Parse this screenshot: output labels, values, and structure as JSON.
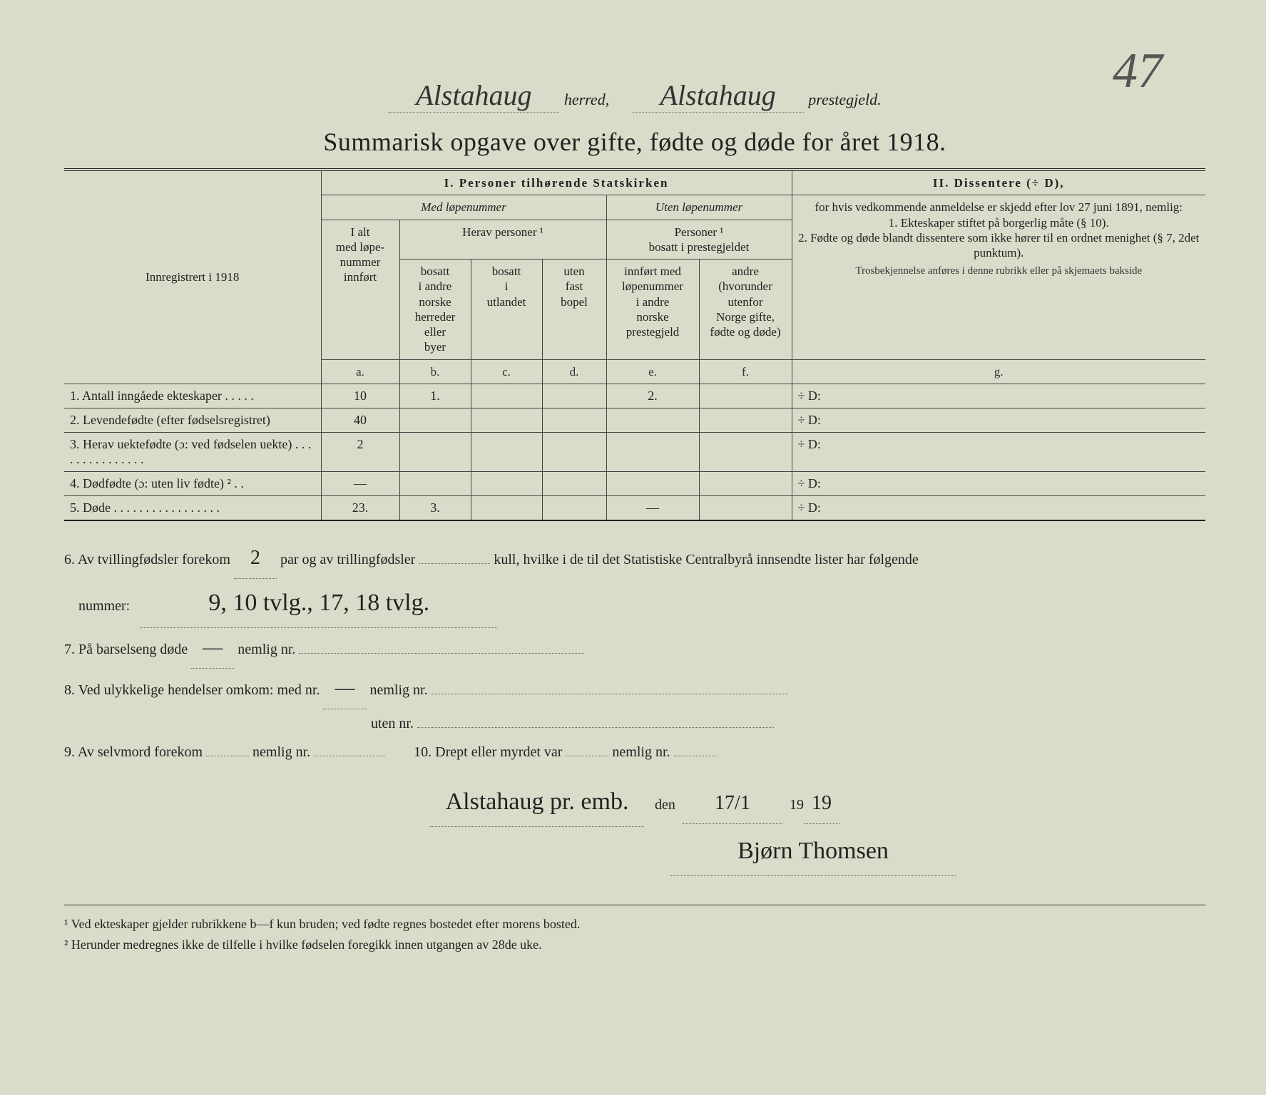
{
  "corner_number": "47",
  "header": {
    "herred_hand": "Alstahaug",
    "herred_label": "herred,",
    "prestegjeld_hand": "Alstahaug",
    "prestegjeld_label": "prestegjeld."
  },
  "title": "Summarisk opgave over gifte, fødte og døde for året 1918.",
  "section1_title": "I.  Personer tilhørende Statskirken",
  "section2_title": "II.  Dissentere (÷ D),",
  "col_left_header": "Innregistrert i 1918",
  "med_lope": "Med løpenummer",
  "uten_lope": "Uten løpenummer",
  "ialt": "I alt\nmed løpe-\nnummer\ninnført",
  "herav": "Herav personer ¹",
  "b": "bosatt\ni andre\nnorske\nherreder\neller\nbyer",
  "c": "bosatt\ni\nutlandet",
  "d": "uten\nfast\nbopel",
  "pers_prest": "Personer ¹\nbosatt i prestegjeldet",
  "e": "innført med\nløpenummer\ni andre\nnorske\nprestegjeld",
  "f": "andre\n(hvorunder\nutenfor\nNorge gifte,\nfødte og døde)",
  "col_letters": {
    "a": "a.",
    "b": "b.",
    "c": "c.",
    "d": "d.",
    "e": "e.",
    "f": "f.",
    "g": "g."
  },
  "diss_text": "for hvis vedkommende anmeldelse er skjedd efter lov 27 juni 1891, nemlig:\n1. Ekteskaper stiftet på borgerlig måte (§ 10).\n2. Fødte og døde blandt dissentere som ikke hører til en ordnet menighet (§ 7, 2det punktum).",
  "diss_footer": "Trosbekjennelse anføres i denne rubrikk\neller på skjemaets bakside",
  "rows": [
    {
      "label": "1. Antall inngåede ekteskaper . . . . .",
      "a": "10",
      "b": "1.",
      "c": "",
      "d": "",
      "e": "2.",
      "f": "",
      "g": "÷ D:"
    },
    {
      "label": "2. Levendefødte (efter fødselsregistret)",
      "a": "40",
      "b": "",
      "c": "",
      "d": "",
      "e": "",
      "f": "",
      "g": "÷ D:"
    },
    {
      "label": "3. Herav uektefødte (ɔ: ved fødselen uekte) . . . . . . . . . . . . . . .",
      "a": "2",
      "b": "",
      "c": "",
      "d": "",
      "e": "",
      "f": "",
      "g": "÷ D:"
    },
    {
      "label": "4. Dødfødte (ɔ: uten liv fødte) ² . .",
      "a": "—",
      "b": "",
      "c": "",
      "d": "",
      "e": "",
      "f": "",
      "g": "÷ D:"
    },
    {
      "label": "5. Døde . . . . . . . . . . . . . . . . .",
      "a": "23.",
      "b": "3.",
      "c": "",
      "d": "",
      "e": "—",
      "f": "",
      "g": "÷ D:"
    }
  ],
  "lower": {
    "q6a": "6.  Av tvillingfødsler forekom",
    "q6_val": "2",
    "q6b": "par og av trillingfødsler",
    "q6c": "kull, hvilke i de til det Statistiske Centralbyrå innsendte lister har følgende",
    "q6d": "nummer:",
    "q6_nums": "9, 10 tvlg.,  17, 18 tvlg.",
    "q7": "7.  På barselseng døde",
    "q7_val": "—",
    "q7b": "nemlig nr.",
    "q8": "8.  Ved ulykkelige hendelser omkom:  med nr.",
    "q8_val": "—",
    "q8b": "nemlig nr.",
    "q8c": "uten nr.",
    "q9": "9.  Av selvmord forekom",
    "q9b": "nemlig nr.",
    "q10": "10.  Drept eller myrdet var",
    "q10b": "nemlig nr.",
    "place": "Alstahaug pr. emb.",
    "den": "den",
    "date": "17/1",
    "year_prefix": "19",
    "year_val": "19",
    "signature": "Bjørn Thomsen"
  },
  "footnotes": {
    "f1": "¹  Ved ekteskaper gjelder rubrikkene b—f kun bruden; ved fødte regnes bostedet efter morens bosted.",
    "f2": "²  Herunder medregnes ikke de tilfelle i hvilke fødselen foregikk innen utgangen av 28de uke."
  },
  "colors": {
    "bg": "#d8dcc8",
    "ink": "#222222",
    "rule": "#444444"
  }
}
